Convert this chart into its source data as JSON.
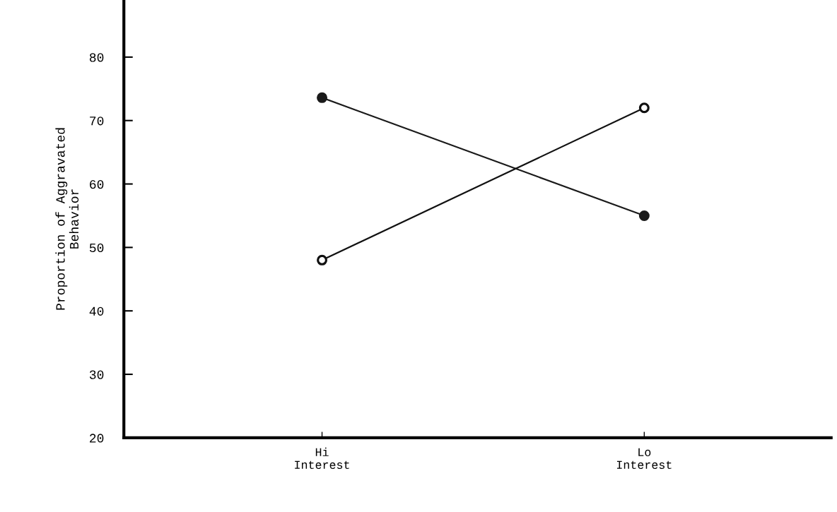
{
  "chart_data": {
    "type": "line",
    "ylabel": "Proportion of Aggravated\nBehavior",
    "categories": [
      "Hi\nInterest",
      "Lo\nInterest"
    ],
    "series": [
      {
        "color": "#1a1a1a",
        "values": [
          73.6,
          55
        ]
      },
      {
        "color": "#111111",
        "colors": [
          "#ffffff",
          "#ffffff"
        ],
        "values": [
          48,
          72
        ]
      }
    ],
    "ylim": [
      20,
      89
    ],
    "yticks": [
      20,
      30,
      40,
      50,
      60,
      70,
      80
    ],
    "marker": "circle",
    "line_style": "solid",
    "grid": false,
    "legend": false
  }
}
